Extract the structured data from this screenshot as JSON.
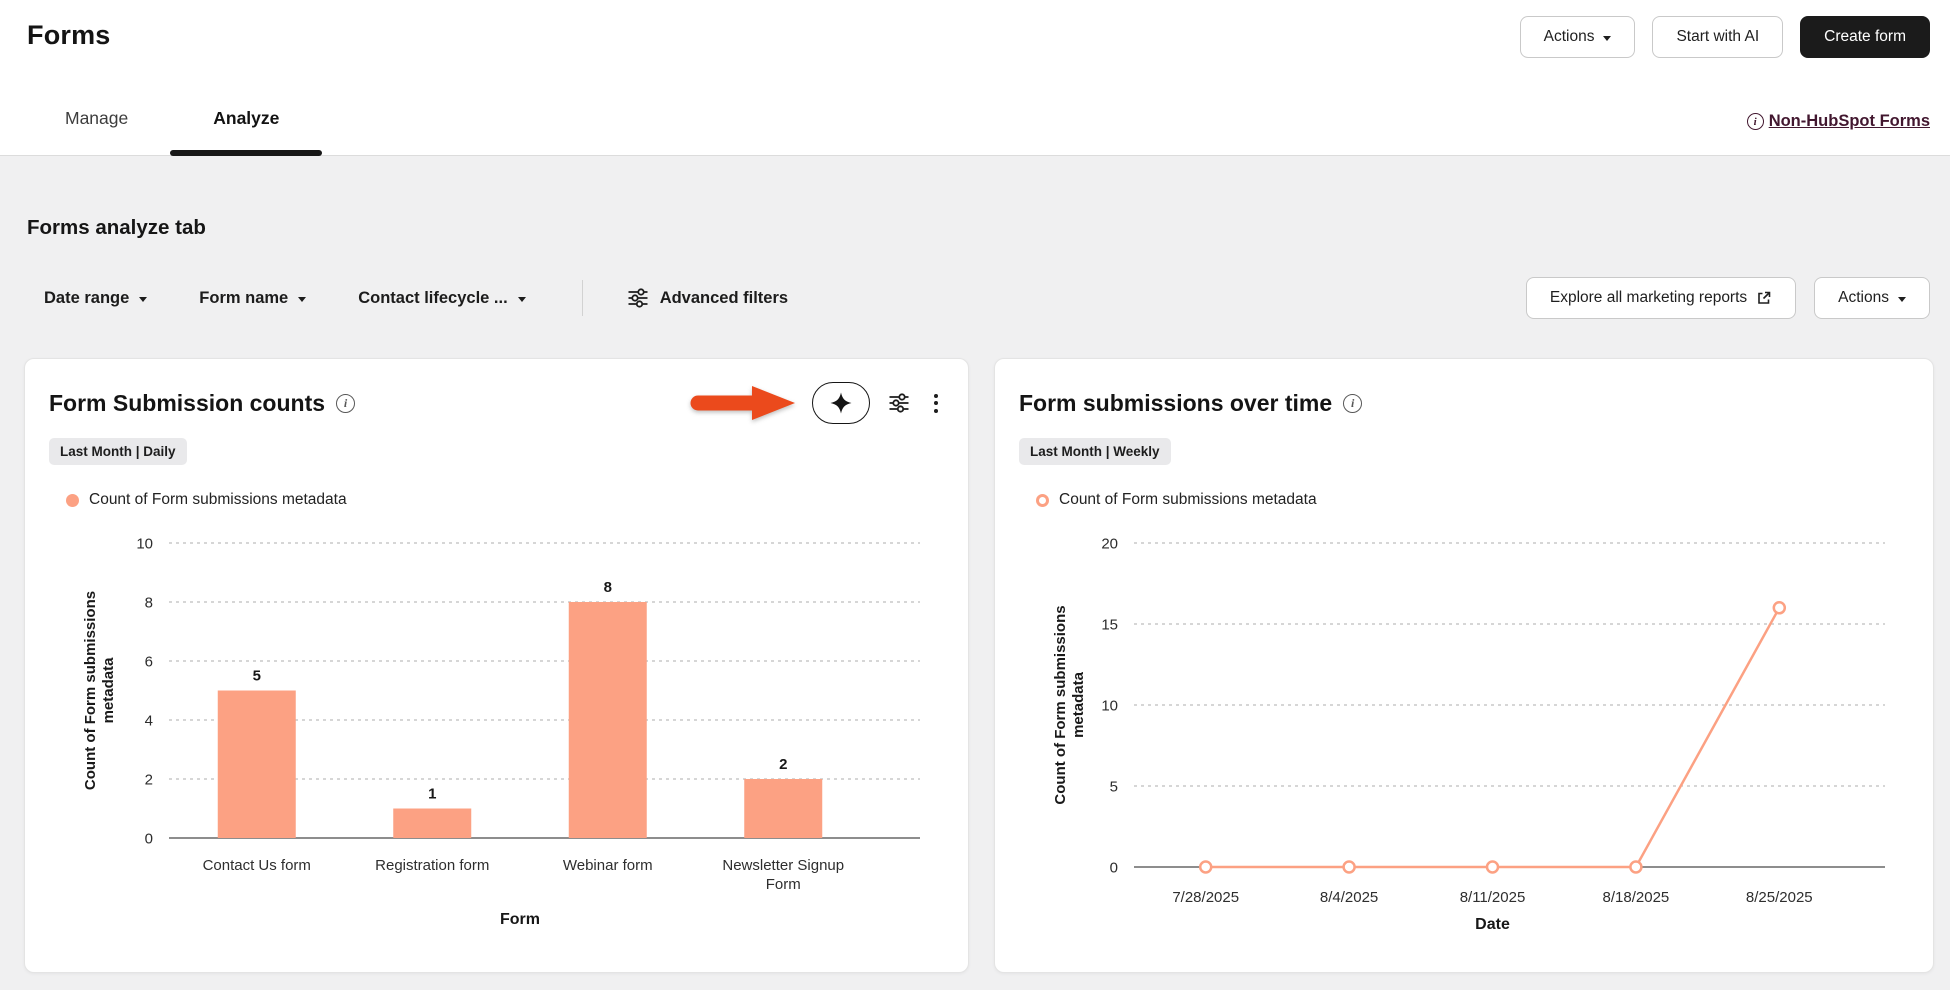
{
  "header": {
    "title": "Forms",
    "tabs": [
      {
        "label": "Manage"
      },
      {
        "label": "Analyze"
      }
    ],
    "actions_label": "Actions",
    "start_with_ai_label": "Start with AI",
    "create_form_label": "Create form",
    "non_hubspot_forms_label": "Non-HubSpot Forms"
  },
  "page": {
    "heading": "Forms analyze tab",
    "filters": {
      "date_range_label": "Date range",
      "form_name_label": "Form name",
      "contact_lifecycle_label": "Contact lifecycle ...",
      "advanced_filters_label": "Advanced filters"
    },
    "explore_reports_label": "Explore all marketing reports",
    "actions_label": "Actions"
  },
  "cards": [
    {
      "title": "Form Submission counts",
      "badge": "Last Month | Daily",
      "legend": "Count of Form submissions metadata",
      "chart_data": {
        "type": "bar",
        "title": "Form Submission counts",
        "categories": [
          "Contact Us form",
          "Registration form",
          "Webinar form",
          "Newsletter Signup Form"
        ],
        "values": [
          5,
          1,
          8,
          2
        ],
        "xlabel": "Form",
        "ylabel": "Count of Form submissions metadata",
        "ylim": [
          0,
          10
        ],
        "yticks": [
          0,
          2,
          4,
          6,
          8,
          10
        ],
        "grid": "horizontal-dashed",
        "legend_position": "top-left",
        "color": "#FCA183"
      }
    },
    {
      "title": "Form submissions over time",
      "badge": "Last Month | Weekly",
      "legend": "Count of Form submissions metadata",
      "chart_data": {
        "type": "line",
        "title": "Form submissions over time",
        "x": [
          "7/28/2025",
          "8/4/2025",
          "8/11/2025",
          "8/18/2025",
          "8/25/2025"
        ],
        "values": [
          0,
          0,
          0,
          0,
          16
        ],
        "xlabel": "Date",
        "ylabel": "Count of Form submissions metadata",
        "ylim": [
          0,
          20
        ],
        "yticks": [
          0,
          5,
          10,
          15,
          20
        ],
        "grid": "horizontal-dashed",
        "legend_position": "top-left",
        "marker": "open-circle",
        "color": "#FCA183"
      }
    }
  ],
  "colors": {
    "chart_salmon": "#FCA183",
    "arrow_orange": "#EB4A1C",
    "link_maroon": "#42172F",
    "dark_button": "#1B1B1B"
  }
}
